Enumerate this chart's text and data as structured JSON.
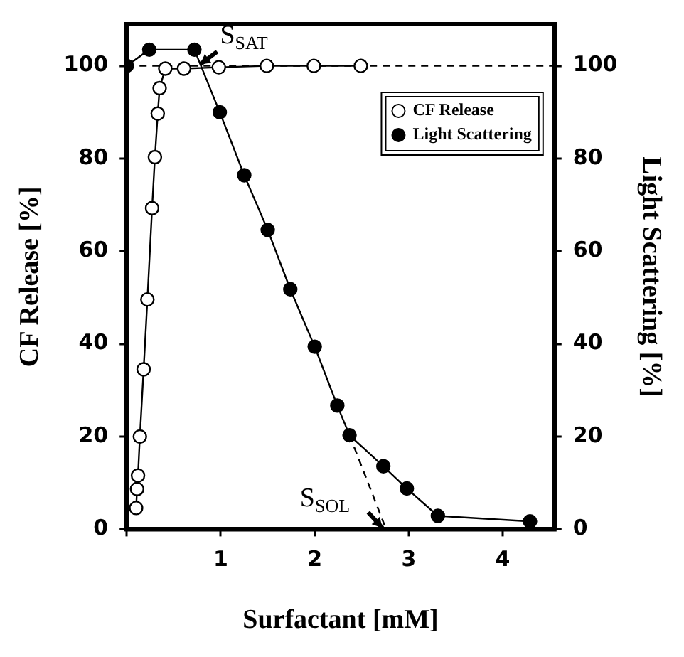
{
  "chart_data": {
    "type": "line",
    "xlabel": "Surfactant [mM]",
    "ylabel": "CF Release [%]",
    "y2label": "Light Scattering [%]",
    "xlim": [
      0,
      4.55
    ],
    "xticks": [
      {
        "value": 0,
        "label": null
      },
      1,
      2,
      3,
      4
    ],
    "ylim": [
      0,
      109
    ],
    "yticks": [
      0,
      20,
      40,
      60,
      80,
      100
    ],
    "y2lim": [
      0,
      109
    ],
    "y2ticks": [
      0,
      20,
      40,
      60,
      80,
      100
    ],
    "grid": false,
    "legend": "top right",
    "marker": "circle",
    "line_style": "solid",
    "series": [
      {
        "name": "CF Release",
        "color": "#ffffff",
        "x": [
          0.1,
          0.11,
          0.12,
          0.14,
          0.18,
          0.22,
          0.27,
          0.3,
          0.33,
          0.35,
          0.41,
          0.61,
          0.98,
          1.49,
          1.99,
          2.49
        ],
        "values": [
          4.6,
          8.7,
          11.6,
          20,
          34.5,
          49.6,
          69.3,
          80.3,
          89.7,
          95.2,
          99.4,
          99.4,
          99.7,
          100,
          100,
          100
        ]
      },
      {
        "name": "Light Scattering",
        "color": "#000000",
        "axis": "y2",
        "x": [
          0,
          0.24,
          0.72,
          0.99,
          1.25,
          1.5,
          1.74,
          2.0,
          2.24,
          2.37,
          2.73,
          2.98,
          3.31,
          4.29
        ],
        "values": [
          100,
          103.5,
          103.5,
          90,
          76.4,
          64.6,
          51.8,
          39.4,
          26.7,
          20.3,
          13.6,
          8.8,
          2.9,
          1.7
        ]
      },
      {
        "type": "line",
        "color": "#000000",
        "marker": "none",
        "line_style": "dashed",
        "x": [
          2.37,
          2.76
        ],
        "values": [
          20.3,
          0
        ]
      }
    ],
    "ref_lines": [
      {
        "axis": "y",
        "value": 100,
        "line_style": "dashed",
        "color": "#000000"
      }
    ],
    "annotations": [
      {
        "text": "S$_{SAT}$",
        "x": 0.75,
        "y": 100
      },
      {
        "text": "S$_{SOL}$",
        "x": 2.72,
        "y": 0
      }
    ]
  }
}
